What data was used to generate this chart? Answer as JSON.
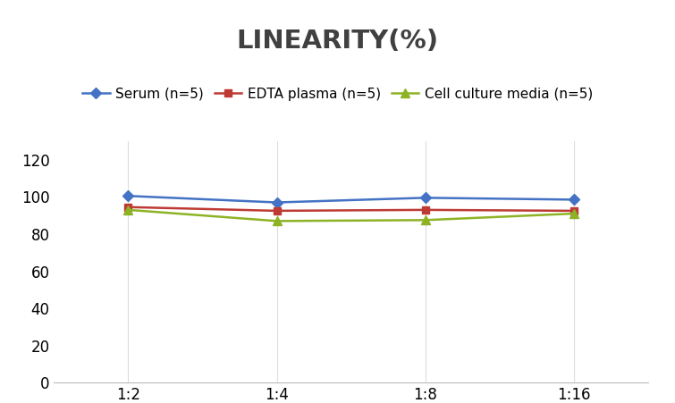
{
  "title": "LINEARITY(%)",
  "title_fontsize": 21,
  "title_fontweight": "bold",
  "title_color": "#404040",
  "x_labels": [
    "1:2",
    "1:4",
    "1:8",
    "1:16"
  ],
  "x_positions": [
    0,
    1,
    2,
    3
  ],
  "series": [
    {
      "label": "Serum (n=5)",
      "values": [
        100.5,
        97.0,
        99.5,
        98.5
      ],
      "color": "#4472C4",
      "marker": "D",
      "markersize": 6,
      "linewidth": 1.8
    },
    {
      "label": "EDTA plasma (n=5)",
      "values": [
        94.5,
        92.5,
        93.0,
        92.5
      ],
      "color": "#BE3A34",
      "marker": "s",
      "markersize": 6,
      "linewidth": 1.8
    },
    {
      "label": "Cell culture media (n=5)",
      "values": [
        93.0,
        87.0,
        87.5,
        91.0
      ],
      "color": "#8DB325",
      "marker": "^",
      "markersize": 7,
      "linewidth": 1.8
    }
  ],
  "ylim": [
    0,
    130
  ],
  "yticks": [
    0,
    20,
    40,
    60,
    80,
    100,
    120
  ],
  "grid_color": "#DDDDDD",
  "background_color": "#FFFFFF",
  "legend_fontsize": 11,
  "tick_fontsize": 12
}
